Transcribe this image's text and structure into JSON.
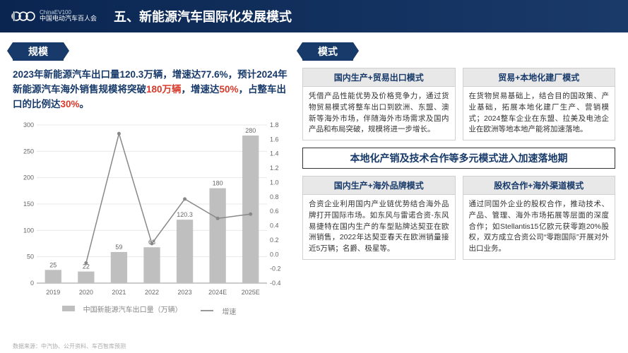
{
  "header": {
    "logo_top": "ChinaEV100",
    "logo_bottom": "中国电动汽车百人会",
    "title": "五、新能源汽车国际化发展模式"
  },
  "left": {
    "tag": "规模",
    "summary_parts": [
      {
        "t": "2023年新能源汽车出口量120.3万辆，增速达77.6%，预计2024年新能源汽车海外销售规模将突破",
        "hl": false
      },
      {
        "t": "180万辆",
        "hl": true
      },
      {
        "t": "，增速达",
        "hl": false
      },
      {
        "t": "50%",
        "hl": true
      },
      {
        "t": "，占整车出口的比例达",
        "hl": false
      },
      {
        "t": "30%",
        "hl": true
      },
      {
        "t": "。",
        "hl": false
      }
    ],
    "chart": {
      "categories": [
        "2019",
        "2020",
        "2021",
        "2022",
        "2023",
        "2024E",
        "2025E"
      ],
      "bar_values": [
        25,
        22,
        59,
        68,
        120.3,
        180,
        280
      ],
      "bar_labels": [
        "25",
        "22",
        "59",
        "68",
        "120.3",
        "180",
        "280"
      ],
      "line_values": [
        null,
        -0.12,
        1.68,
        0.15,
        0.77,
        0.5,
        0.56
      ],
      "y_left": {
        "min": 0,
        "max": 300,
        "step": 50
      },
      "y_right": {
        "min": -0.4,
        "max": 1.8,
        "step": 0.2
      },
      "bar_color": "#bfbfbf",
      "line_color": "#888888",
      "grid_color": "#e8e8e8",
      "text_color": "#666666",
      "legend_bar": "中国新能源汽车出口量（万辆）",
      "legend_line": "增速"
    }
  },
  "right": {
    "tag": "模式",
    "cards_top": [
      {
        "head": "国内生产+贸易出口模式",
        "body": "凭借产品性能优势及价格竞争力，通过货物贸易模式将整车出口到欧洲、东盟、澳新等海外市场，伴随海外市场需求及国内产品和布局突破，规模将进一步增长。"
      },
      {
        "head": "贸易+本地化建厂模式",
        "body": "在货物贸易基础上，结合目的国政策、产业基础，拓展本地化建厂生产、营销模式；2024整车企业在东盟、拉美及电池企业在欧洲等地本地产能将加速落地。"
      }
    ],
    "banner": "本地化产销及技术合作等多元模式进入加速落地期",
    "cards_bottom": [
      {
        "head": "国内生产+海外品牌模式",
        "body": "合资企业利用国内产业链优势结合海外品牌打开国际市场。如东风与雷诺合资-东风易捷特在国内生产的车型贴牌达契亚在欧洲销售，2022年达契亚春天在欧洲销量接近5万辆；名爵、极星等。"
      },
      {
        "head": "股权合作+海外渠道模式",
        "body": "通过同国外企业的股权合作，推动技术、产品、管理、海外市场拓展等层面的深度合作；如Stellantis15亿欧元获零跑20%股权，双方成立合资公司“零跑国际”开展对外出口业务。"
      }
    ]
  },
  "footer": "数据来源：中汽协、公开资料、车百智库预测"
}
